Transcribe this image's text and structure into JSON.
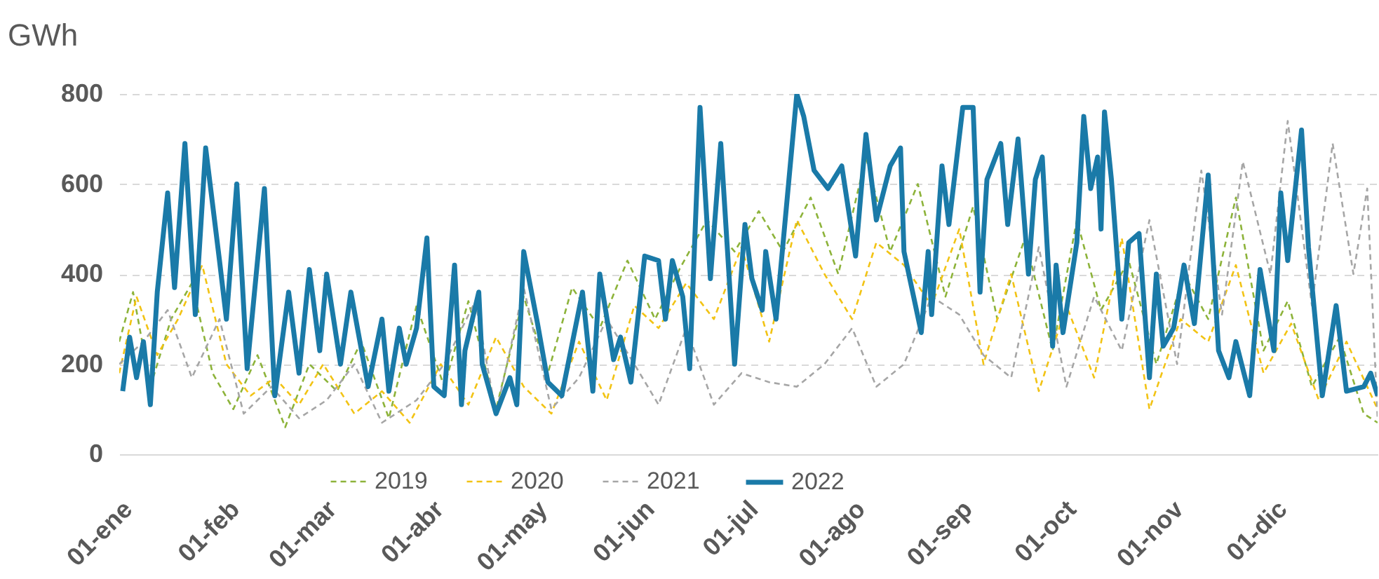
{
  "chart_data": {
    "type": "line",
    "ylabel": "GWh",
    "xlim": [
      "--01-01",
      "--12-31"
    ],
    "xticks": [
      {
        "value": "--01-01",
        "label": "01-ene"
      },
      {
        "value": "--02-01",
        "label": "01-feb"
      },
      {
        "value": "--03-01",
        "label": "01-mar"
      },
      {
        "value": "--04-01",
        "label": "01-abr"
      },
      {
        "value": "--05-01",
        "label": "01-may"
      },
      {
        "value": "--06-01",
        "label": "01-jun"
      },
      {
        "value": "--07-01",
        "label": "01-jul"
      },
      {
        "value": "--08-01",
        "label": "01-ago"
      },
      {
        "value": "--09-01",
        "label": "01-sep"
      },
      {
        "value": "--10-01",
        "label": "01-oct"
      },
      {
        "value": "--11-01",
        "label": "01-nov"
      },
      {
        "value": "--12-01",
        "label": "01-dic"
      }
    ],
    "ylim": [
      0,
      800
    ],
    "yticks": [
      0,
      200,
      400,
      600,
      800
    ],
    "grid": "y",
    "legend": "bottom",
    "series": [
      {
        "name": "2019",
        "color": "#8db33a",
        "line_style": "dashed",
        "x": [
          "--01-01",
          "--01-05",
          "--01-10",
          "--01-16",
          "--01-22",
          "--01-28",
          "--02-03",
          "--02-10",
          "--02-18",
          "--02-25",
          "--03-05",
          "--03-12",
          "--03-20",
          "--03-28",
          "--04-05",
          "--04-12",
          "--04-20",
          "--04-28",
          "--05-05",
          "--05-12",
          "--05-20",
          "--05-28",
          "--06-05",
          "--06-12",
          "--06-20",
          "--06-28",
          "--07-05",
          "--07-12",
          "--07-20",
          "--07-28",
          "--08-05",
          "--08-12",
          "--08-20",
          "--08-28",
          "--09-05",
          "--09-12",
          "--09-20",
          "--09-28",
          "--10-05",
          "--10-12",
          "--10-20",
          "--10-28",
          "--11-05",
          "--11-12",
          "--11-20",
          "--11-28",
          "--12-05",
          "--12-12",
          "--12-20",
          "--12-27",
          "--12-31"
        ],
        "values": [
          250,
          360,
          150,
          300,
          380,
          180,
          100,
          220,
          60,
          200,
          140,
          250,
          80,
          330,
          150,
          340,
          100,
          350,
          180,
          370,
          280,
          430,
          300,
          410,
          520,
          450,
          540,
          450,
          570,
          400,
          660,
          450,
          600,
          350,
          550,
          300,
          480,
          230,
          520,
          320,
          430,
          200,
          400,
          300,
          570,
          230,
          340,
          150,
          260,
          90,
          70
        ]
      },
      {
        "name": "2020",
        "color": "#f2c314",
        "line_style": "dashed",
        "x": [
          "--01-01",
          "--01-06",
          "--01-12",
          "--01-18",
          "--01-25",
          "--02-01",
          "--02-08",
          "--02-15",
          "--02-22",
          "--03-01",
          "--03-10",
          "--03-18",
          "--03-26",
          "--04-04",
          "--04-12",
          "--04-20",
          "--04-28",
          "--05-06",
          "--05-14",
          "--05-22",
          "--05-30",
          "--06-06",
          "--06-14",
          "--06-22",
          "--06-30",
          "--07-08",
          "--07-16",
          "--07-24",
          "--08-01",
          "--08-08",
          "--08-16",
          "--08-24",
          "--09-01",
          "--09-08",
          "--09-16",
          "--09-24",
          "--10-02",
          "--10-10",
          "--10-18",
          "--10-26",
          "--11-04",
          "--11-12",
          "--11-20",
          "--11-28",
          "--12-06",
          "--12-14",
          "--12-22",
          "--12-31"
        ],
        "values": [
          180,
          350,
          220,
          300,
          420,
          200,
          130,
          170,
          110,
          200,
          90,
          140,
          70,
          200,
          110,
          260,
          150,
          90,
          250,
          120,
          330,
          280,
          380,
          300,
          460,
          250,
          520,
          400,
          300,
          470,
          420,
          330,
          500,
          200,
          400,
          140,
          330,
          170,
          480,
          100,
          300,
          250,
          420,
          180,
          290,
          120,
          250,
          100
        ]
      },
      {
        "name": "2021",
        "color": "#a6a6a6",
        "line_style": "dashed",
        "x": [
          "--01-01",
          "--01-08",
          "--01-15",
          "--01-22",
          "--01-30",
          "--02-06",
          "--02-14",
          "--02-22",
          "--03-02",
          "--03-10",
          "--03-18",
          "--03-28",
          "--04-05",
          "--04-14",
          "--04-20",
          "--04-28",
          "--05-06",
          "--05-14",
          "--05-22",
          "--05-30",
          "--06-06",
          "--06-14",
          "--06-22",
          "--06-30",
          "--07-08",
          "--07-16",
          "--07-24",
          "--08-01",
          "--08-08",
          "--08-16",
          "--08-24",
          "--09-01",
          "--09-08",
          "--09-16",
          "--09-24",
          "--10-02",
          "--10-10",
          "--10-18",
          "--10-26",
          "--11-03",
          "--11-10",
          "--11-16",
          "--11-22",
          "--11-30",
          "--12-05",
          "--12-12",
          "--12-18",
          "--12-24",
          "--12-28",
          "--12-31"
        ],
        "values": [
          200,
          250,
          320,
          170,
          300,
          90,
          150,
          80,
          120,
          200,
          70,
          120,
          200,
          340,
          90,
          370,
          100,
          170,
          300,
          200,
          110,
          280,
          110,
          180,
          160,
          150,
          200,
          280,
          150,
          200,
          350,
          310,
          220,
          170,
          460,
          150,
          350,
          230,
          520,
          200,
          630,
          310,
          650,
          400,
          740,
          330,
          690,
          400,
          590,
          80
        ]
      },
      {
        "name": "2022",
        "color": "#1a7aa8",
        "line_style": "solid",
        "x": [
          "--01-02",
          "--01-04",
          "--01-06",
          "--01-08",
          "--01-10",
          "--01-12",
          "--01-15",
          "--01-17",
          "--01-20",
          "--01-23",
          "--01-26",
          "--01-30",
          "--02-01",
          "--02-04",
          "--02-07",
          "--02-12",
          "--02-15",
          "--02-19",
          "--02-22",
          "--02-25",
          "--02-28",
          "--03-02",
          "--03-06",
          "--03-09",
          "--03-14",
          "--03-18",
          "--03-20",
          "--03-23",
          "--03-25",
          "--03-28",
          "--03-31",
          "--04-02",
          "--04-05",
          "--04-08",
          "--04-10",
          "--04-11",
          "--04-15",
          "--04-16",
          "--04-20",
          "--04-24",
          "--04-26",
          "--04-28",
          "--05-02",
          "--05-05",
          "--05-09",
          "--05-15",
          "--05-18",
          "--05-20",
          "--05-24",
          "--05-26",
          "--05-29",
          "--06-02",
          "--06-06",
          "--06-08",
          "--06-10",
          "--06-13",
          "--06-15",
          "--06-18",
          "--06-21",
          "--06-24",
          "--06-28",
          "--07-01",
          "--07-03",
          "--07-06",
          "--07-07",
          "--07-10",
          "--07-16",
          "--07-18",
          "--07-21",
          "--07-25",
          "--07-29",
          "--08-02",
          "--08-05",
          "--08-08",
          "--08-12",
          "--08-15",
          "--08-16",
          "--08-21",
          "--08-23",
          "--08-24",
          "--08-27",
          "--08-29",
          "--09-02",
          "--09-05",
          "--09-07",
          "--09-09",
          "--09-13",
          "--09-15",
          "--09-18",
          "--09-21",
          "--09-23",
          "--09-25",
          "--09-28",
          "--09-29",
          "--10-01",
          "--10-05",
          "--10-07",
          "--10-09",
          "--10-11",
          "--10-12",
          "--10-13",
          "--10-15",
          "--10-18",
          "--10-20",
          "--10-23",
          "--10-26",
          "--10-28",
          "--10-30",
          "--11-02",
          "--11-05",
          "--11-08",
          "--11-12",
          "--11-15",
          "--11-18",
          "--11-20",
          "--11-24",
          "--11-27",
          "--12-01",
          "--12-03",
          "--12-05",
          "--12-09",
          "--12-11",
          "--12-15",
          "--12-19",
          "--12-22",
          "--12-27",
          "--12-29",
          "--12-31"
        ],
        "values": [
          140,
          260,
          170,
          250,
          110,
          360,
          580,
          370,
          690,
          310,
          680,
          430,
          300,
          600,
          190,
          590,
          130,
          360,
          180,
          410,
          230,
          400,
          200,
          360,
          150,
          300,
          140,
          280,
          200,
          280,
          480,
          150,
          130,
          420,
          110,
          230,
          360,
          200,
          90,
          170,
          110,
          450,
          290,
          160,
          130,
          360,
          140,
          400,
          210,
          260,
          160,
          440,
          430,
          300,
          430,
          350,
          190,
          770,
          390,
          690,
          200,
          510,
          390,
          320,
          450,
          300,
          800,
          750,
          630,
          590,
          640,
          440,
          710,
          520,
          640,
          680,
          450,
          270,
          450,
          310,
          640,
          510,
          770,
          770,
          360,
          610,
          690,
          510,
          700,
          400,
          610,
          660,
          240,
          420,
          270,
          470,
          750,
          590,
          660,
          500,
          760,
          610,
          300,
          470,
          490,
          170,
          400,
          240,
          280,
          420,
          290,
          620,
          230,
          170,
          250,
          130,
          410,
          230,
          580,
          430,
          720,
          460,
          130,
          330,
          140,
          150,
          180,
          130
        ]
      }
    ]
  }
}
